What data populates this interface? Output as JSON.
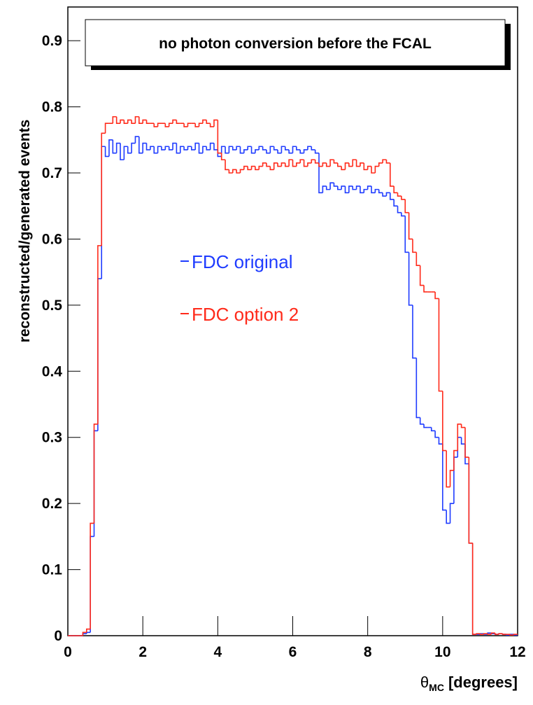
{
  "chart_data": {
    "type": "histogram",
    "title": "no photon conversion before the FCAL",
    "y_label": "reconstructed/generated events",
    "x_label": {
      "symbol": "θ",
      "subscript": "MC",
      "unit": "[degrees]"
    },
    "bins": [
      0,
      0.1,
      0.2,
      0.3,
      0.4,
      0.5,
      0.6,
      0.7,
      0.8,
      0.9,
      1.0,
      1.1,
      1.2,
      1.3,
      1.4,
      1.5,
      1.6,
      1.7,
      1.8,
      1.9,
      2.0,
      2.1,
      2.2,
      2.3,
      2.4,
      2.5,
      2.6,
      2.7,
      2.8,
      2.9,
      3.0,
      3.1,
      3.2,
      3.3,
      3.4,
      3.5,
      3.6,
      3.7,
      3.8,
      3.9,
      4.0,
      4.1,
      4.2,
      4.3,
      4.4,
      4.5,
      4.6,
      4.7,
      4.8,
      4.9,
      5.0,
      5.1,
      5.2,
      5.3,
      5.4,
      5.5,
      5.6,
      5.7,
      5.8,
      5.9,
      6.0,
      6.1,
      6.2,
      6.3,
      6.4,
      6.5,
      6.6,
      6.7,
      6.8,
      6.9,
      7.0,
      7.1,
      7.2,
      7.3,
      7.4,
      7.5,
      7.6,
      7.7,
      7.8,
      7.9,
      8.0,
      8.1,
      8.2,
      8.3,
      8.4,
      8.5,
      8.6,
      8.7,
      8.8,
      8.9,
      9.0,
      9.1,
      9.2,
      9.3,
      9.4,
      9.5,
      9.6,
      9.7,
      9.8,
      9.9,
      10.0,
      10.1,
      10.2,
      10.3,
      10.4,
      10.5,
      10.6,
      10.7,
      10.8,
      10.9,
      11.0,
      11.1,
      11.2,
      11.3,
      11.4,
      11.5,
      11.6,
      11.7,
      11.8,
      11.9,
      12.0
    ],
    "series": [
      {
        "name": "FDC original",
        "color": "#1f3cff",
        "values": [
          0,
          0,
          0,
          0,
          0.003,
          0.005,
          0.15,
          0.31,
          0.54,
          0.74,
          0.725,
          0.75,
          0.73,
          0.745,
          0.72,
          0.74,
          0.73,
          0.745,
          0.755,
          0.73,
          0.745,
          0.735,
          0.74,
          0.73,
          0.74,
          0.735,
          0.74,
          0.735,
          0.745,
          0.73,
          0.74,
          0.735,
          0.74,
          0.735,
          0.745,
          0.73,
          0.74,
          0.735,
          0.745,
          0.735,
          0.725,
          0.74,
          0.73,
          0.74,
          0.735,
          0.74,
          0.73,
          0.735,
          0.74,
          0.73,
          0.735,
          0.74,
          0.735,
          0.73,
          0.74,
          0.735,
          0.73,
          0.74,
          0.735,
          0.73,
          0.74,
          0.735,
          0.73,
          0.735,
          0.74,
          0.735,
          0.73,
          0.67,
          0.68,
          0.675,
          0.685,
          0.68,
          0.675,
          0.68,
          0.67,
          0.68,
          0.675,
          0.68,
          0.67,
          0.675,
          0.68,
          0.67,
          0.675,
          0.67,
          0.665,
          0.67,
          0.66,
          0.65,
          0.64,
          0.635,
          0.58,
          0.5,
          0.42,
          0.33,
          0.32,
          0.315,
          0.315,
          0.31,
          0.3,
          0.29,
          0.19,
          0.17,
          0.2,
          0.27,
          0.3,
          0.29,
          0.26,
          0.14,
          0.002,
          0.002,
          0.003,
          0.002,
          0.004,
          0.003,
          0.002,
          0.003,
          0.002,
          0.001,
          0.002,
          0.001
        ]
      },
      {
        "name": "FDC option 2",
        "color": "#ff2a1a",
        "values": [
          0,
          0,
          0,
          0,
          0.005,
          0.01,
          0.17,
          0.32,
          0.59,
          0.76,
          0.775,
          0.775,
          0.785,
          0.775,
          0.78,
          0.775,
          0.78,
          0.775,
          0.785,
          0.775,
          0.78,
          0.775,
          0.775,
          0.77,
          0.775,
          0.775,
          0.77,
          0.775,
          0.78,
          0.775,
          0.775,
          0.77,
          0.775,
          0.775,
          0.77,
          0.775,
          0.78,
          0.775,
          0.77,
          0.78,
          0.73,
          0.72,
          0.705,
          0.7,
          0.705,
          0.7,
          0.705,
          0.71,
          0.705,
          0.71,
          0.705,
          0.71,
          0.715,
          0.71,
          0.705,
          0.715,
          0.71,
          0.715,
          0.71,
          0.72,
          0.71,
          0.715,
          0.72,
          0.71,
          0.715,
          0.72,
          0.715,
          0.71,
          0.715,
          0.71,
          0.72,
          0.715,
          0.71,
          0.705,
          0.715,
          0.71,
          0.72,
          0.71,
          0.715,
          0.705,
          0.71,
          0.7,
          0.71,
          0.715,
          0.72,
          0.715,
          0.68,
          0.67,
          0.665,
          0.66,
          0.64,
          0.6,
          0.58,
          0.56,
          0.53,
          0.52,
          0.52,
          0.52,
          0.51,
          0.37,
          0.28,
          0.225,
          0.25,
          0.28,
          0.32,
          0.315,
          0.27,
          0.14,
          0.002,
          0.003,
          0.002,
          0.003,
          0.002,
          0.004,
          0.002,
          0.003,
          0.002,
          0.002,
          0.001,
          0.002
        ]
      }
    ],
    "xlim": [
      0,
      12
    ],
    "xticks": [
      0,
      2,
      4,
      6,
      8,
      10,
      12
    ],
    "ylim": [
      0,
      0.951
    ],
    "yticks": [
      0,
      0.1,
      0.2,
      0.3,
      0.4,
      0.5,
      0.6,
      0.7,
      0.8,
      0.9
    ]
  }
}
